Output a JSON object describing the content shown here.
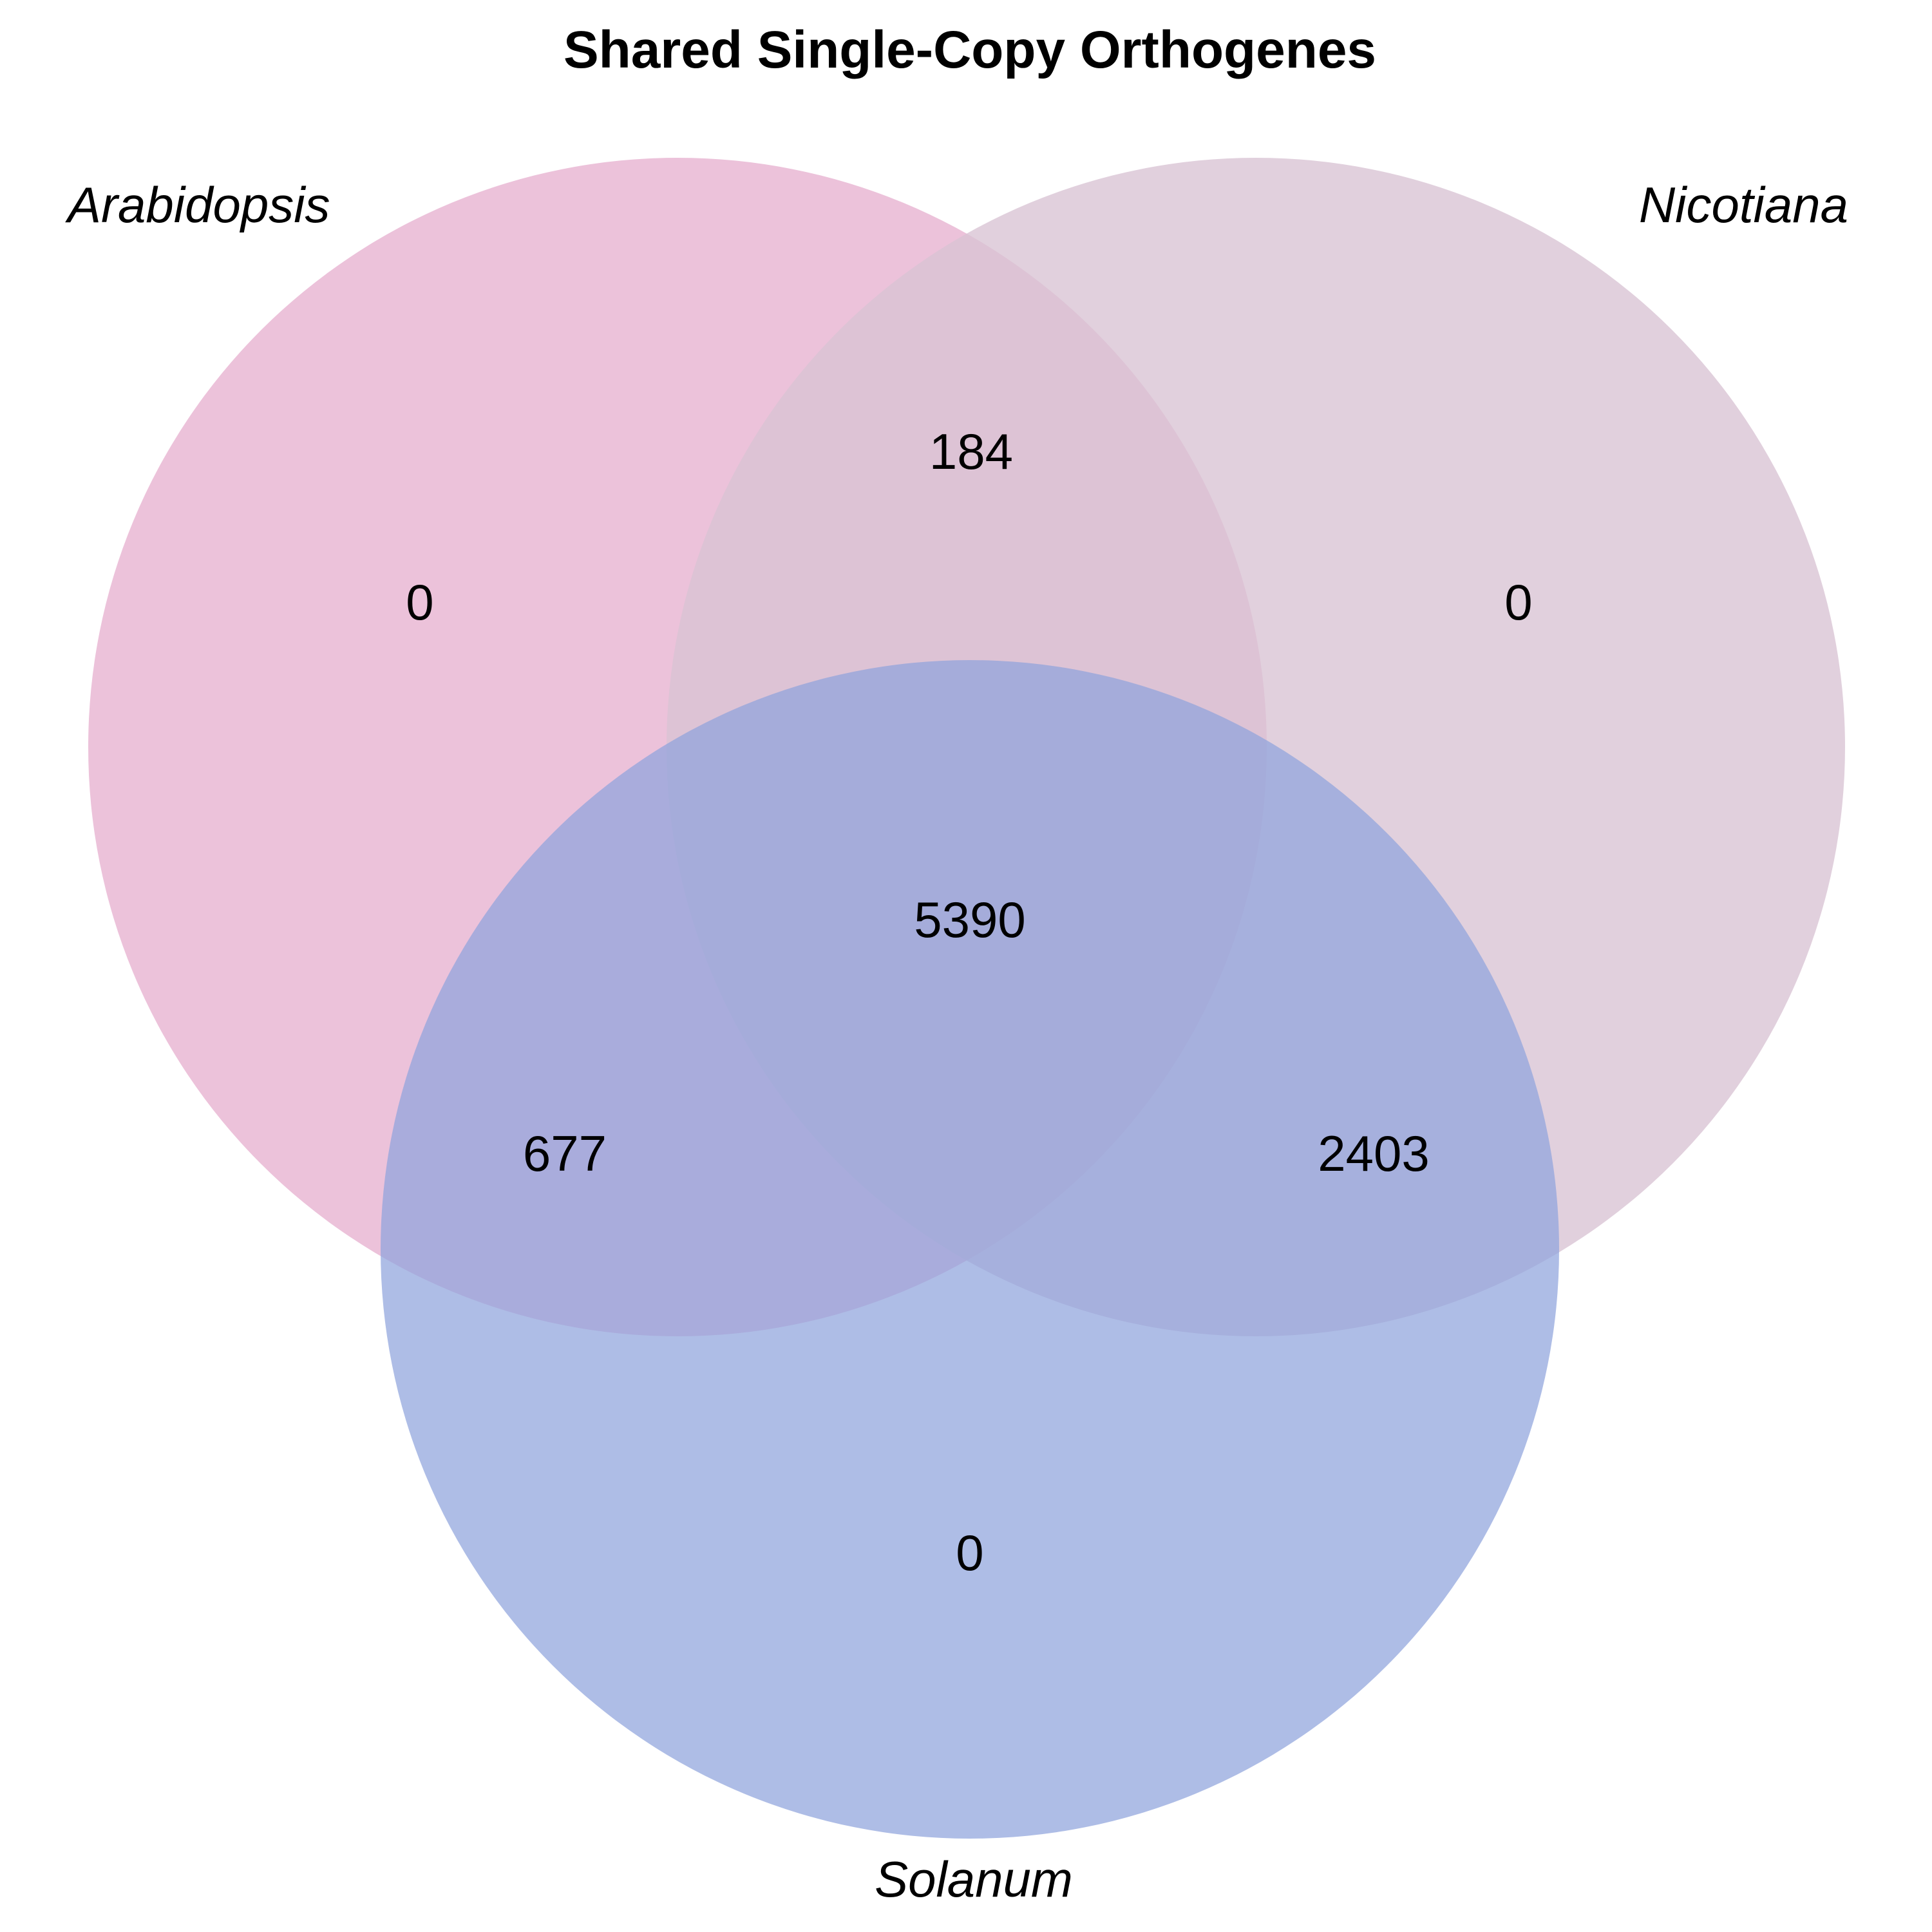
{
  "title": "Shared Single-Copy Orthogenes",
  "sets": [
    {
      "id": "arabidopsis",
      "label": "Arabidopsis",
      "color": "#e7b1d0",
      "opacity": 0.78
    },
    {
      "id": "nicotiana",
      "label": "Nicotiana",
      "color": "#d8c3d3",
      "opacity": 0.78
    },
    {
      "id": "solanum",
      "label": "Solanum",
      "color": "#8fa3dc",
      "opacity": 0.72
    }
  ],
  "regions": {
    "arabidopsis_only": "0",
    "nicotiana_only": "0",
    "solanum_only": "0",
    "arabidopsis_nicotiana": "184",
    "arabidopsis_solanum": "677",
    "nicotiana_solanum": "2403",
    "all_three": "5390"
  }
}
